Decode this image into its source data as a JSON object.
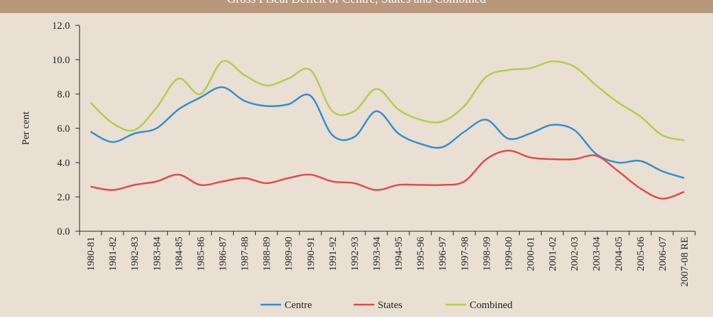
{
  "chart_data": {
    "type": "line",
    "title": "Gross Fiscal Deficit of Centre, States and Combined",
    "y_label": "Per cent",
    "categories": [
      "1980-81",
      "1981-82",
      "1982-83",
      "1983-84",
      "1984-85",
      "1985-86",
      "1986-87",
      "1987-88",
      "1988-89",
      "1989-90",
      "1990-91",
      "1991-92",
      "1992-93",
      "1993-94",
      "1994-95",
      "1995-96",
      "1996-97",
      "1997-98",
      "1998-99",
      "1999-00",
      "2000-01",
      "2001-02",
      "2002-03",
      "2003-04",
      "2004-05",
      "2005-06",
      "2006-07",
      "2007-08 RE"
    ],
    "series": [
      {
        "name": "Centre",
        "color": "#2e8fd0",
        "values": [
          5.8,
          5.2,
          5.7,
          6.0,
          7.1,
          7.8,
          8.4,
          7.6,
          7.3,
          7.4,
          7.9,
          5.6,
          5.5,
          7.0,
          5.7,
          5.1,
          4.9,
          5.8,
          6.5,
          5.4,
          5.7,
          6.2,
          5.9,
          4.5,
          4.0,
          4.1,
          3.5,
          3.1
        ]
      },
      {
        "name": "States",
        "color": "#e04a4a",
        "values": [
          2.6,
          2.4,
          2.7,
          2.9,
          3.3,
          2.7,
          2.9,
          3.1,
          2.8,
          3.1,
          3.3,
          2.9,
          2.8,
          2.4,
          2.7,
          2.7,
          2.7,
          2.9,
          4.2,
          4.7,
          4.3,
          4.2,
          4.2,
          4.4,
          3.5,
          2.5,
          1.9,
          2.3
        ]
      },
      {
        "name": "Combined",
        "color": "#b5cc4a",
        "values": [
          7.5,
          6.3,
          5.9,
          7.2,
          8.9,
          8.0,
          9.9,
          9.1,
          8.5,
          8.9,
          9.4,
          7.0,
          7.0,
          8.3,
          7.1,
          6.5,
          6.4,
          7.3,
          9.0,
          9.4,
          9.5,
          9.9,
          9.6,
          8.5,
          7.5,
          6.7,
          5.6,
          5.3
        ]
      }
    ],
    "ylim": [
      0,
      12
    ],
    "yticks": [
      {
        "value": 0,
        "label": "0.0"
      },
      {
        "value": 2,
        "label": "2.0"
      },
      {
        "value": 4,
        "label": "4.0"
      },
      {
        "value": 6,
        "label": "6.0"
      },
      {
        "value": 8,
        "label": "8.0"
      },
      {
        "value": 10,
        "label": "10.0"
      },
      {
        "value": 12,
        "label": "12.0"
      }
    ],
    "legend": "bottom"
  }
}
